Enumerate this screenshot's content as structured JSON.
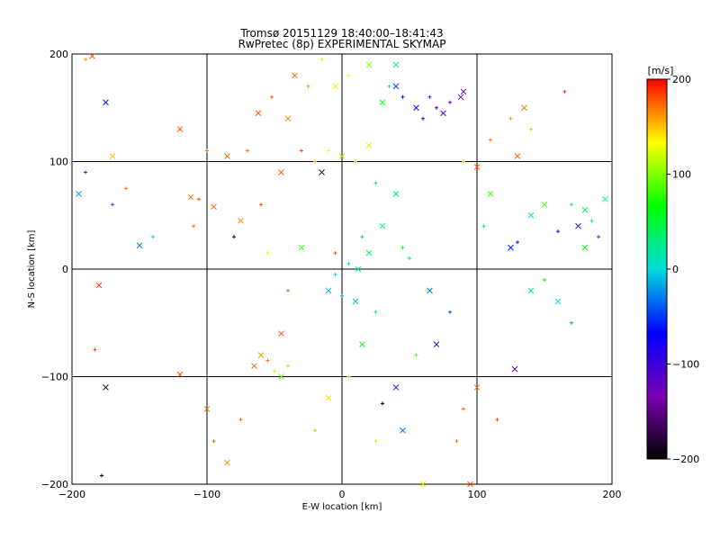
{
  "chart_data": {
    "type": "scatter",
    "title": "Tromsø 20151129 18:40:00–18:41:43",
    "subtitle": "RwPretec (8p) EXPERIMENTAL SKYMAP",
    "xlabel": "E-W location [km]",
    "ylabel": "N-S location [km]",
    "xlim": [
      -200,
      200
    ],
    "ylim": [
      -200,
      200
    ],
    "x_ticks": [
      -200,
      -100,
      0,
      100,
      200
    ],
    "y_ticks": [
      -200,
      -100,
      0,
      100,
      200
    ],
    "x_tick_labels": [
      "−200",
      "−100",
      "0",
      "100",
      "200"
    ],
    "y_tick_labels": [
      "−200",
      "−100",
      "0",
      "100",
      "200"
    ],
    "grid": true,
    "marker_types": [
      "cross (x)",
      "plus (+)"
    ],
    "colorbar": {
      "label": "[m/s]",
      "range": [
        -200,
        200
      ],
      "ticks": [
        200,
        100,
        0,
        -100,
        -200
      ],
      "tick_labels": [
        "200",
        "100",
        "0",
        "−100",
        "−200"
      ],
      "colors": [
        "#000000",
        "#7b00b3",
        "#0000ff",
        "#00dddd",
        "#00ff00",
        "#ffff00",
        "#ff0000"
      ]
    },
    "series_points_x_km_y_km_velocity_mps": [
      [
        -185,
        198,
        180
      ],
      [
        -190,
        195,
        160
      ],
      [
        -175,
        155,
        -60
      ],
      [
        -160,
        75,
        170
      ],
      [
        -170,
        105,
        150
      ],
      [
        -190,
        90,
        -50
      ],
      [
        -195,
        70,
        -20
      ],
      [
        -170,
        60,
        -40
      ],
      [
        -150,
        22,
        -30
      ],
      [
        -140,
        30,
        0
      ],
      [
        -180,
        -15,
        190
      ],
      [
        -183,
        -75,
        180
      ],
      [
        -175,
        -110,
        -200
      ],
      [
        -178,
        -192,
        -200
      ],
      [
        -120,
        -98,
        180
      ],
      [
        -110,
        40,
        170
      ],
      [
        -112,
        67,
        170
      ],
      [
        -106,
        65,
        180
      ],
      [
        -120,
        130,
        175
      ],
      [
        -100,
        110,
        170
      ],
      [
        -95,
        58,
        175
      ],
      [
        -80,
        30,
        -190
      ],
      [
        -62,
        145,
        180
      ],
      [
        -52,
        160,
        175
      ],
      [
        -40,
        140,
        165
      ],
      [
        -30,
        110,
        180
      ],
      [
        -15,
        90,
        -200
      ],
      [
        -5,
        15,
        180
      ],
      [
        -45,
        90,
        180
      ],
      [
        -70,
        110,
        170
      ],
      [
        -85,
        105,
        175
      ],
      [
        -60,
        60,
        180
      ],
      [
        -75,
        45,
        165
      ],
      [
        -55,
        15,
        120
      ],
      [
        -30,
        20,
        80
      ],
      [
        -40,
        -20,
        175
      ],
      [
        -45,
        -60,
        180
      ],
      [
        -55,
        -85,
        170
      ],
      [
        -65,
        -90,
        175
      ],
      [
        -50,
        -95,
        120
      ],
      [
        -45,
        -100,
        90
      ],
      [
        -40,
        -90,
        110
      ],
      [
        -60,
        -80,
        160
      ],
      [
        -75,
        -140,
        170
      ],
      [
        -85,
        -180,
        165
      ],
      [
        -95,
        -160,
        175
      ],
      [
        -100,
        -130,
        170
      ],
      [
        -20,
        -150,
        150
      ],
      [
        -10,
        -120,
        140
      ],
      [
        5,
        -100,
        110
      ],
      [
        15,
        -70,
        60
      ],
      [
        25,
        -40,
        0
      ],
      [
        10,
        -30,
        -10
      ],
      [
        0,
        -25,
        -20
      ],
      [
        -10,
        -20,
        -10
      ],
      [
        5,
        5,
        10
      ],
      [
        12,
        0,
        20
      ],
      [
        -5,
        -5,
        0
      ],
      [
        20,
        15,
        40
      ],
      [
        15,
        30,
        -10
      ],
      [
        30,
        40,
        30
      ],
      [
        45,
        20,
        60
      ],
      [
        40,
        70,
        20
      ],
      [
        50,
        10,
        10
      ],
      [
        65,
        -20,
        -30
      ],
      [
        80,
        -40,
        -40
      ],
      [
        70,
        -70,
        -60
      ],
      [
        55,
        -80,
        90
      ],
      [
        40,
        -110,
        -60
      ],
      [
        30,
        -125,
        -200
      ],
      [
        45,
        -150,
        -30
      ],
      [
        25,
        -160,
        120
      ],
      [
        60,
        -200,
        140
      ],
      [
        85,
        -160,
        170
      ],
      [
        95,
        -200,
        180
      ],
      [
        70,
        150,
        -100
      ],
      [
        75,
        145,
        -110
      ],
      [
        80,
        155,
        -120
      ],
      [
        88,
        160,
        -130
      ],
      [
        65,
        160,
        -140
      ],
      [
        55,
        150,
        -80
      ],
      [
        45,
        160,
        -60
      ],
      [
        40,
        170,
        -50
      ],
      [
        60,
        140,
        -90
      ],
      [
        90,
        165,
        -150
      ],
      [
        110,
        120,
        170
      ],
      [
        100,
        95,
        175
      ],
      [
        90,
        100,
        150
      ],
      [
        110,
        70,
        80
      ],
      [
        105,
        40,
        20
      ],
      [
        125,
        20,
        -60
      ],
      [
        130,
        25,
        -90
      ],
      [
        140,
        -20,
        20
      ],
      [
        150,
        -10,
        60
      ],
      [
        160,
        -30,
        0
      ],
      [
        170,
        -50,
        -20
      ],
      [
        175,
        40,
        -70
      ],
      [
        170,
        60,
        30
      ],
      [
        180,
        55,
        40
      ],
      [
        185,
        45,
        10
      ],
      [
        195,
        65,
        20
      ],
      [
        190,
        30,
        -40
      ],
      [
        180,
        20,
        60
      ],
      [
        160,
        35,
        -100
      ],
      [
        150,
        60,
        80
      ],
      [
        165,
        165,
        190
      ],
      [
        135,
        150,
        170
      ],
      [
        140,
        130,
        150
      ],
      [
        130,
        105,
        175
      ],
      [
        125,
        140,
        160
      ],
      [
        128,
        -93,
        -120
      ],
      [
        115,
        -140,
        180
      ],
      [
        100,
        -110,
        170
      ],
      [
        90,
        -130,
        175
      ],
      [
        140,
        50,
        0
      ],
      [
        -10,
        110,
        130
      ],
      [
        0,
        105,
        110
      ],
      [
        10,
        100,
        100
      ],
      [
        20,
        115,
        120
      ],
      [
        -20,
        100,
        160
      ],
      [
        -5,
        170,
        140
      ],
      [
        5,
        180,
        130
      ],
      [
        20,
        190,
        100
      ],
      [
        35,
        170,
        0
      ],
      [
        40,
        190,
        20
      ],
      [
        -25,
        170,
        160
      ],
      [
        -35,
        180,
        170
      ],
      [
        -15,
        195,
        140
      ],
      [
        30,
        155,
        60
      ],
      [
        25,
        80,
        20
      ]
    ]
  }
}
